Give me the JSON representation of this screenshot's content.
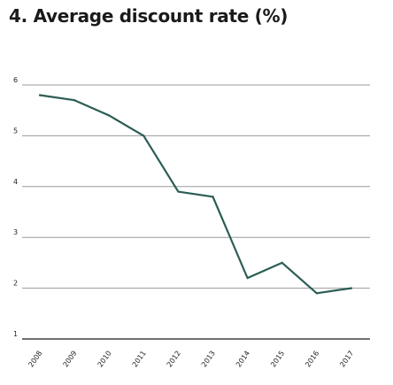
{
  "chart_data": {
    "type": "line",
    "title": "4. Average discount rate (%)",
    "xlabel": "",
    "ylabel": "",
    "categories": [
      "2008",
      "2009",
      "2010",
      "2011",
      "2012",
      "2013",
      "2014",
      "2015",
      "2016",
      "2017"
    ],
    "series": [
      {
        "values": [
          5.8,
          5.7,
          5.4,
          5.0,
          3.9,
          3.8,
          2.2,
          2.5,
          1.9,
          2.0
        ]
      }
    ],
    "ylim": [
      1,
      6
    ],
    "yticks": [
      1,
      2,
      3,
      4,
      5,
      6
    ],
    "grid": true,
    "colors": {
      "line": "#2b5d55",
      "grid": "#9a9a9a",
      "baseline": "#1a1a1a"
    }
  }
}
